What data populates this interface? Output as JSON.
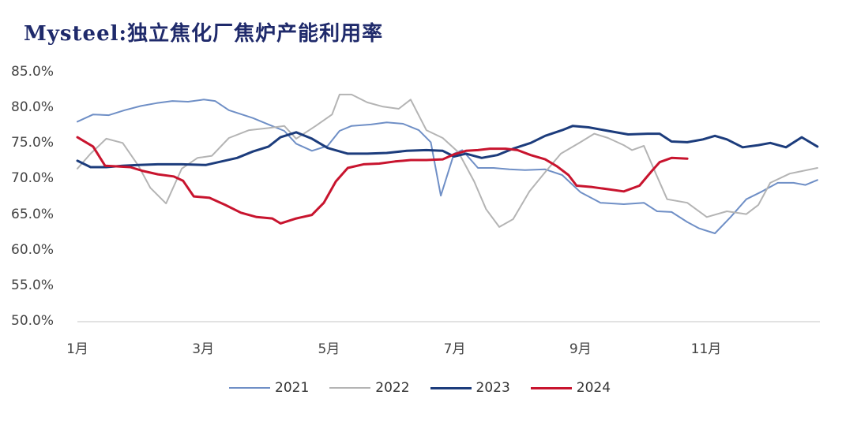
{
  "title": "Mysteel:独立焦化厂焦炉产能利用率",
  "chart_data": {
    "type": "line",
    "title": "Mysteel:独立焦化厂焦炉产能利用率",
    "xlabel": "",
    "ylabel": "",
    "ylim": [
      50,
      85
    ],
    "xlim": [
      1,
      12.8
    ],
    "grid": false,
    "legend_position": "bottom",
    "y_ticks": [
      "85.0%",
      "80.0%",
      "75.0%",
      "70.0%",
      "65.0%",
      "60.0%",
      "55.0%",
      "50.0%"
    ],
    "y_tick_values": [
      85,
      80,
      75,
      70,
      65,
      60,
      55,
      50
    ],
    "x_ticks": [
      "1月",
      "3月",
      "5月",
      "7月",
      "9月",
      "11月"
    ],
    "x_tick_values": [
      1,
      3,
      5,
      7,
      9,
      11
    ],
    "series": [
      {
        "name": "2021",
        "color": "#6f8fc6",
        "width": 2,
        "x": [
          1.0,
          1.25,
          1.5,
          1.75,
          2.01,
          2.26,
          2.51,
          2.76,
          3.01,
          3.19,
          3.41,
          3.79,
          4.04,
          4.29,
          4.48,
          4.73,
          4.98,
          5.17,
          5.36,
          5.67,
          5.92,
          6.18,
          6.43,
          6.62,
          6.78,
          6.99,
          7.12,
          7.37,
          7.62,
          7.87,
          8.12,
          8.44,
          8.71,
          9.0,
          9.32,
          9.69,
          10.01,
          10.22,
          10.45,
          10.7,
          10.89,
          11.14,
          11.39,
          11.64,
          11.89,
          12.14,
          12.39,
          12.58,
          12.77
        ],
        "values": [
          78.1,
          79.1,
          79.0,
          79.7,
          80.3,
          80.7,
          81.0,
          80.9,
          81.2,
          81.0,
          79.7,
          78.6,
          77.7,
          76.8,
          75.0,
          74.0,
          74.7,
          76.8,
          77.5,
          77.7,
          78.0,
          77.8,
          76.9,
          75.2,
          67.7,
          73.6,
          74.1,
          71.6,
          71.6,
          71.4,
          71.3,
          71.4,
          70.6,
          68.2,
          66.7,
          66.5,
          66.7,
          65.5,
          65.4,
          64.0,
          63.1,
          62.4,
          64.7,
          67.2,
          68.3,
          69.5,
          69.5,
          69.2,
          69.9
        ]
      },
      {
        "name": "2022",
        "color": "#b4b4b4",
        "width": 2,
        "x": [
          1.0,
          1.21,
          1.46,
          1.72,
          1.97,
          2.16,
          2.41,
          2.66,
          2.91,
          3.14,
          3.41,
          3.73,
          4.04,
          4.29,
          4.48,
          4.79,
          5.05,
          5.17,
          5.36,
          5.61,
          5.86,
          6.11,
          6.3,
          6.55,
          6.81,
          7.06,
          7.31,
          7.5,
          7.71,
          7.93,
          8.19,
          8.44,
          8.69,
          9.0,
          9.22,
          9.44,
          9.69,
          9.82,
          10.01,
          10.2,
          10.38,
          10.7,
          11.01,
          11.33,
          11.64,
          11.83,
          12.02,
          12.33,
          12.77
        ],
        "values": [
          71.5,
          73.6,
          75.7,
          75.1,
          71.9,
          68.8,
          66.6,
          71.5,
          73.0,
          73.3,
          75.8,
          76.9,
          77.2,
          77.5,
          75.7,
          77.5,
          79.1,
          81.9,
          81.9,
          80.8,
          80.2,
          79.9,
          81.2,
          76.9,
          75.8,
          73.8,
          69.7,
          65.8,
          63.3,
          64.4,
          68.3,
          71.0,
          73.6,
          75.2,
          76.4,
          75.8,
          74.8,
          74.1,
          74.7,
          70.8,
          67.2,
          66.7,
          64.7,
          65.5,
          65.1,
          66.4,
          69.5,
          70.8,
          71.6
        ]
      },
      {
        "name": "2023",
        "color": "#1c3c7c",
        "width": 3,
        "x": [
          1.0,
          1.21,
          1.46,
          1.72,
          1.97,
          2.28,
          2.66,
          3.04,
          3.29,
          3.54,
          3.79,
          4.04,
          4.23,
          4.48,
          4.73,
          4.98,
          5.3,
          5.61,
          5.92,
          6.24,
          6.55,
          6.81,
          6.99,
          7.18,
          7.43,
          7.68,
          7.93,
          8.21,
          8.44,
          8.71,
          8.88,
          9.13,
          9.44,
          9.76,
          10.07,
          10.26,
          10.45,
          10.7,
          10.95,
          11.14,
          11.33,
          11.58,
          11.83,
          12.02,
          12.27,
          12.52,
          12.77
        ],
        "values": [
          72.6,
          71.7,
          71.7,
          71.9,
          72.0,
          72.1,
          72.1,
          72.0,
          72.5,
          73.0,
          73.9,
          74.6,
          75.9,
          76.6,
          75.7,
          74.4,
          73.6,
          73.6,
          73.7,
          74.0,
          74.1,
          74.0,
          73.2,
          73.6,
          73.0,
          73.4,
          74.3,
          75.1,
          76.1,
          76.9,
          77.5,
          77.3,
          76.8,
          76.3,
          76.4,
          76.4,
          75.3,
          75.2,
          75.6,
          76.1,
          75.6,
          74.5,
          74.8,
          75.1,
          74.5,
          75.9,
          74.6
        ]
      },
      {
        "name": "2024",
        "color": "#c8142e",
        "width": 3,
        "x": [
          1.0,
          1.25,
          1.44,
          1.65,
          1.84,
          2.03,
          2.28,
          2.53,
          2.68,
          2.85,
          3.1,
          3.35,
          3.6,
          3.85,
          4.1,
          4.23,
          4.48,
          4.73,
          4.92,
          5.11,
          5.3,
          5.55,
          5.8,
          6.05,
          6.3,
          6.55,
          6.81,
          6.99,
          7.18,
          7.37,
          7.56,
          7.81,
          8.0,
          8.21,
          8.44,
          8.63,
          8.81,
          8.94,
          9.19,
          9.44,
          9.69,
          9.94,
          10.13,
          10.26,
          10.45,
          10.7
        ],
        "values": [
          75.9,
          74.6,
          71.9,
          71.8,
          71.7,
          71.2,
          70.7,
          70.4,
          69.8,
          67.6,
          67.4,
          66.4,
          65.3,
          64.7,
          64.5,
          63.8,
          64.5,
          65.0,
          66.7,
          69.7,
          71.6,
          72.1,
          72.2,
          72.5,
          72.7,
          72.7,
          72.8,
          73.5,
          74.0,
          74.1,
          74.3,
          74.3,
          74.1,
          73.4,
          72.8,
          71.8,
          70.6,
          69.1,
          68.9,
          68.6,
          68.3,
          69.1,
          71.1,
          72.4,
          73.0,
          72.9
        ]
      }
    ]
  },
  "legend": [
    {
      "label": "2021",
      "color": "#6f8fc6"
    },
    {
      "label": "2022",
      "color": "#b4b4b4"
    },
    {
      "label": "2023",
      "color": "#1c3c7c"
    },
    {
      "label": "2024",
      "color": "#c8142e"
    }
  ]
}
